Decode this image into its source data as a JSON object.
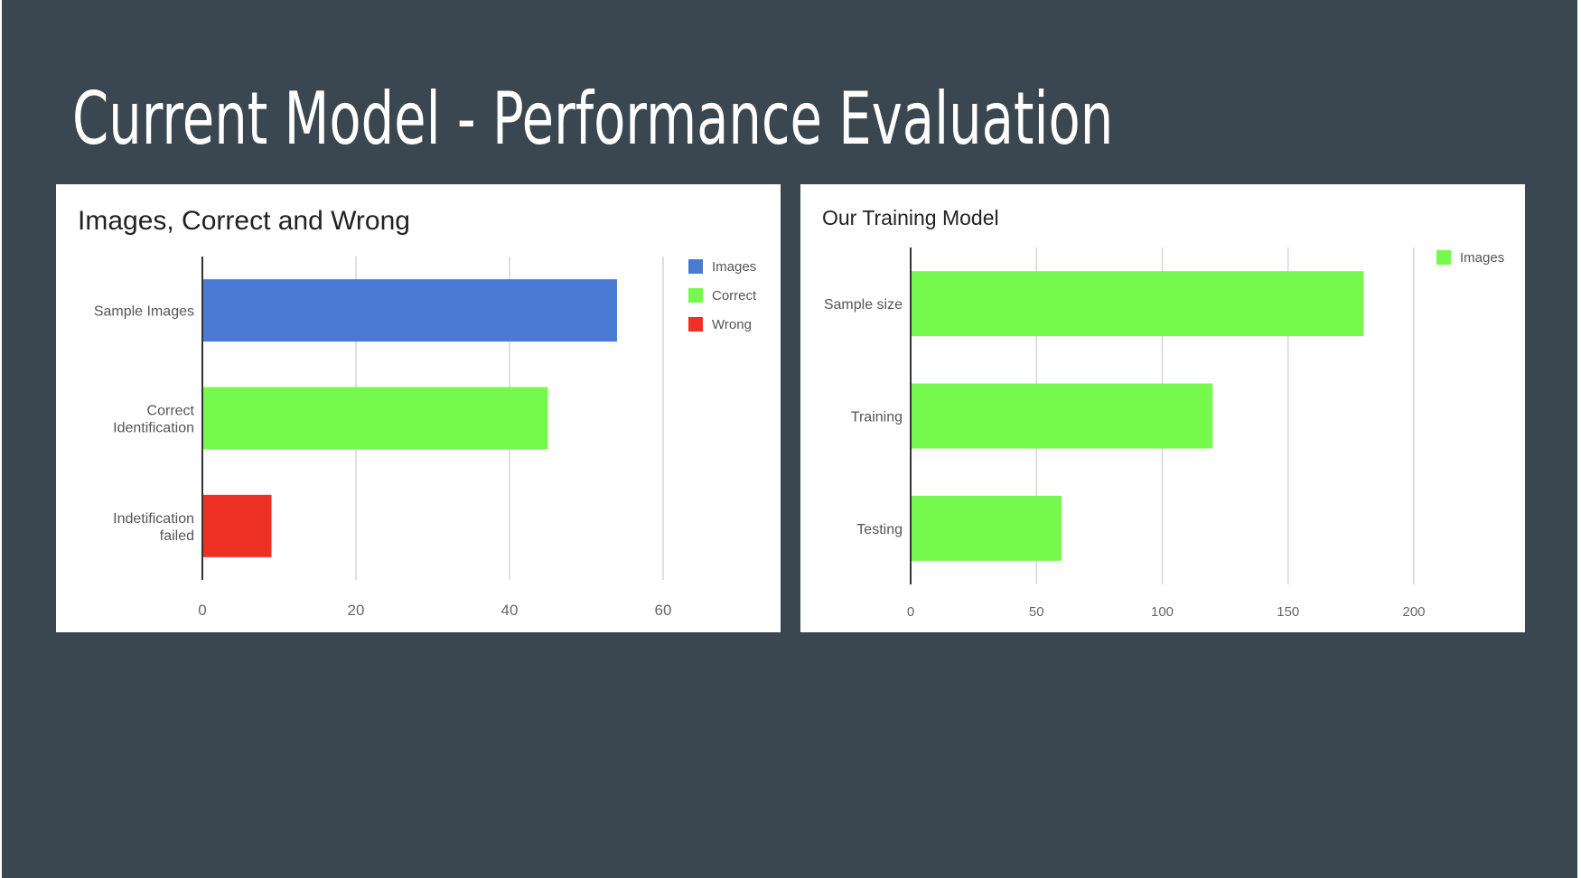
{
  "slide": {
    "title": "Current Model - Performance Evaluation",
    "background": "#3b4750"
  },
  "chart_data": [
    {
      "type": "bar",
      "orientation": "horizontal",
      "title": "Images, Correct and Wrong",
      "categories": [
        "Sample Images",
        "Correct Identification",
        "Indetification failed"
      ],
      "series": [
        {
          "name": "Images",
          "color": "#4a7bd4",
          "values": [
            54,
            null,
            null
          ]
        },
        {
          "name": "Correct",
          "color": "#76f94d",
          "values": [
            null,
            45,
            null
          ]
        },
        {
          "name": "Wrong",
          "color": "#ee3124",
          "values": [
            null,
            null,
            9
          ]
        }
      ],
      "xlim": [
        0,
        72
      ],
      "xticks": [
        0,
        20,
        40,
        60
      ],
      "xlabel": "",
      "ylabel": "",
      "grid": true,
      "legend": "top-right"
    },
    {
      "type": "bar",
      "orientation": "horizontal",
      "title": "Our Training Model",
      "categories": [
        "Sample size",
        "Training",
        "Testing"
      ],
      "series": [
        {
          "name": "Images",
          "color": "#76f94d",
          "values": [
            180,
            120,
            60
          ]
        }
      ],
      "xlim": [
        0,
        235
      ],
      "xticks": [
        0,
        50,
        100,
        150,
        200
      ],
      "xlabel": "",
      "ylabel": "",
      "grid": true,
      "legend": "top-right"
    }
  ]
}
